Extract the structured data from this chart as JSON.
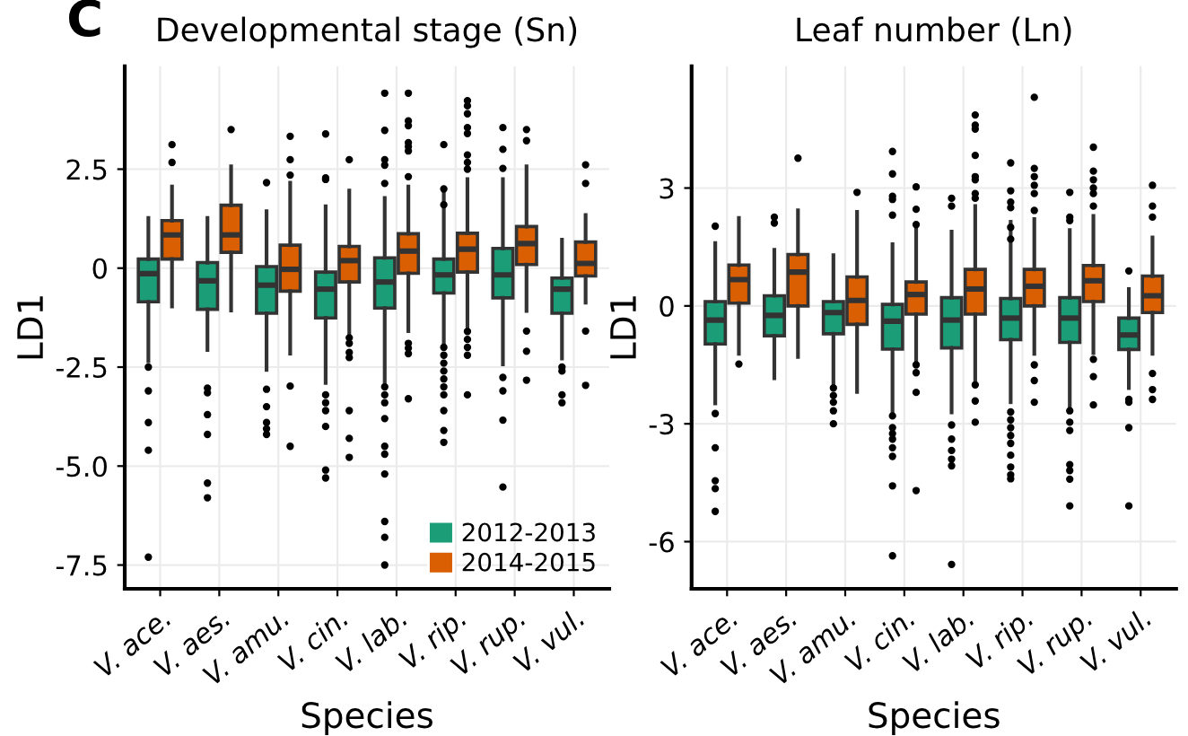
{
  "chart_data": [
    {
      "type": "box",
      "title": "Developmental stage (Sn)",
      "xlabel": "Species",
      "ylabel": "LD1",
      "annotations": [
        "C"
      ],
      "categories": [
        "V. ace.",
        "V. aes.",
        "V. amu.",
        "V. cin.",
        "V. lab.",
        "V. rip.",
        "V. rup.",
        "V. vul."
      ],
      "ylim": [
        -8.1,
        5.1
      ],
      "yticks": [
        -7.5,
        {
          "value": -5,
          "label": "-5.0"
        },
        -2.5,
        0,
        2.5
      ],
      "grid": true,
      "legend": "bottom right",
      "series": [
        {
          "name": "2012-2013",
          "color": "#1b9e77",
          "boxes": [
            {
              "low": -2.35,
              "q1": -0.85,
              "median": -0.14,
              "q3": 0.23,
              "high": 1.27,
              "outliers": [
                -2.5,
                -3.1,
                -3.9,
                -4.6,
                -7.3
              ]
            },
            {
              "low": -2.07,
              "q1": -1.04,
              "median": -0.32,
              "q3": 0.14,
              "high": 1.27,
              "outliers": [
                -3.03,
                -3.15,
                -3.7,
                -4.2,
                -5.43,
                -5.8
              ]
            },
            {
              "low": -2.57,
              "q1": -1.14,
              "median": -0.43,
              "q3": 0.04,
              "high": 1.44,
              "outliers": [
                2.16,
                -3.06,
                -3.5,
                -3.9,
                -4.06,
                -4.2
              ]
            },
            {
              "low": -2.9,
              "q1": -1.26,
              "median": -0.53,
              "q3": -0.1,
              "high": 1.56,
              "outliers": [
                3.39,
                2.28,
                2.24,
                -3.2,
                -3.4,
                -3.6,
                -4.0,
                -5.1,
                -5.3
              ]
            },
            {
              "low": -2.93,
              "q1": -1.01,
              "median": -0.35,
              "q3": 0.26,
              "high": 1.77,
              "outliers": [
                4.42,
                3.48,
                2.74,
                2.6,
                2.14,
                -3.0,
                -3.2,
                -3.4,
                -3.8,
                -4.5,
                -4.7,
                -5.2,
                -6.4,
                -6.8,
                -7.5
              ]
            },
            {
              "low": -1.9,
              "q1": -0.63,
              "median": -0.17,
              "q3": 0.23,
              "high": 1.9,
              "outliers": [
                3.12,
                2.0,
                1.6,
                -2.0,
                -2.2,
                -2.4,
                -2.6,
                -2.8,
                -3.0,
                -3.2,
                -3.6,
                -4.1,
                -4.4
              ]
            },
            {
              "low": -2.43,
              "q1": -0.75,
              "median": -0.17,
              "q3": 0.5,
              "high": 2.25,
              "outliers": [
                3.55,
                3.0,
                2.52,
                -2.76,
                -3.1,
                -3.84,
                -5.53
              ]
            },
            {
              "low": -2.28,
              "q1": -1.14,
              "median": -0.53,
              "q3": -0.25,
              "high": 0.72,
              "outliers": [
                -2.5,
                -2.6,
                -3.2,
                -3.4
              ]
            }
          ]
        },
        {
          "name": "2014-2015",
          "color": "#d95f02",
          "boxes": [
            {
              "low": -0.97,
              "q1": 0.23,
              "median": 0.84,
              "q3": 1.2,
              "high": 2.06,
              "outliers": [
                3.12,
                2.67
              ]
            },
            {
              "low": -1.07,
              "q1": 0.4,
              "median": 0.84,
              "q3": 1.59,
              "high": 2.57,
              "outliers": [
                3.5
              ]
            },
            {
              "low": -2.16,
              "q1": -0.58,
              "median": -0.03,
              "q3": 0.58,
              "high": 2.16,
              "outliers": [
                3.33,
                2.74,
                2.35,
                -2.98,
                -4.5
              ]
            },
            {
              "low": -1.69,
              "q1": -0.35,
              "median": 0.19,
              "q3": 0.55,
              "high": 1.96,
              "outliers": [
                2.74,
                -1.76,
                -1.9,
                -2.13,
                -2.26,
                -3.6,
                -4.3,
                -4.78
              ]
            },
            {
              "low": -1.59,
              "q1": -0.13,
              "median": 0.43,
              "q3": 0.87,
              "high": 2.06,
              "outliers": [
                4.42,
                3.72,
                3.6,
                3.17,
                3.07,
                2.96,
                2.31,
                -1.9,
                -2.02,
                -2.16,
                -3.3
              ]
            },
            {
              "low": -1.54,
              "q1": -0.1,
              "median": 0.48,
              "q3": 0.88,
              "high": 2.25,
              "outliers": [
                4.23,
                4.1,
                3.9,
                3.55,
                3.4,
                2.86,
                2.67,
                2.5,
                -1.6,
                -1.8,
                -2.0,
                -2.2,
                -3.2
              ]
            },
            {
              "low": -1.08,
              "q1": 0.09,
              "median": 0.62,
              "q3": 1.05,
              "high": 2.57,
              "outliers": [
                3.5,
                3.22,
                -1.59,
                -2.1,
                -2.83
              ]
            },
            {
              "low": -0.87,
              "q1": -0.2,
              "median": 0.12,
              "q3": 0.66,
              "high": 1.34,
              "outliers": [
                2.61,
                2.14,
                -1.59,
                -2.96
              ]
            }
          ]
        }
      ]
    },
    {
      "type": "box",
      "title": "Leaf number (Ln)",
      "xlabel": "Species",
      "ylabel": "LD1",
      "categories": [
        "V. ace.",
        "V. aes.",
        "V. amu.",
        "V. cin.",
        "V. lab.",
        "V. rip.",
        "V. rup.",
        "V. vul."
      ],
      "ylim": [
        -7.2,
        6.1
      ],
      "yticks": [
        -6,
        -3,
        0,
        3
      ],
      "grid": true,
      "series": [
        {
          "color": "#1b9e77",
          "boxes": [
            {
              "low": -2.48,
              "q1": -0.97,
              "median": -0.36,
              "q3": 0.11,
              "high": 1.6,
              "outliers": [
                2.03,
                -2.74,
                -3.61,
                -4.45,
                -4.65,
                -5.23
              ]
            },
            {
              "low": -1.84,
              "q1": -0.76,
              "median": -0.24,
              "q3": 0.26,
              "high": 1.43,
              "outliers": [
                2.26,
                2.11
              ]
            },
            {
              "low": -2.0,
              "q1": -0.71,
              "median": -0.17,
              "q3": 0.11,
              "high": 1.29,
              "outliers": [
                -2.09,
                -2.28,
                -2.45,
                -2.67,
                -3.0
              ]
            },
            {
              "low": -2.74,
              "q1": -1.1,
              "median": -0.39,
              "q3": 0.04,
              "high": 1.57,
              "outliers": [
                3.93,
                3.36,
                2.79,
                2.71,
                2.31,
                -2.8,
                -3.1,
                -3.25,
                -3.39,
                -3.61,
                -3.83,
                -4.58,
                -6.36
              ]
            },
            {
              "low": -2.71,
              "q1": -1.07,
              "median": -0.36,
              "q3": 0.21,
              "high": 1.89,
              "outliers": [
                2.74,
                2.54,
                -3.03,
                -3.39,
                -3.68,
                -3.9,
                -4.07,
                -6.58
              ]
            },
            {
              "low": -2.45,
              "q1": -0.86,
              "median": -0.31,
              "q3": 0.19,
              "high": 2.14,
              "outliers": [
                3.64,
                2.93,
                2.64,
                2.5,
                2.0,
                1.7,
                -2.7,
                -2.9,
                -3.1,
                -3.3,
                -3.5,
                -3.8,
                -4.1,
                -4.3,
                -4.4
              ]
            },
            {
              "low": -2.59,
              "q1": -0.93,
              "median": -0.31,
              "q3": 0.21,
              "high": 1.93,
              "outliers": [
                2.89,
                2.26,
                2.17,
                -2.67,
                -2.96,
                -3.17,
                -4.04,
                -4.19,
                -4.41,
                -5.09
              ]
            },
            {
              "low": -2.09,
              "q1": -1.11,
              "median": -0.74,
              "q3": -0.31,
              "high": 0.43,
              "outliers": [
                0.89,
                -2.38,
                -2.45,
                -3.1,
                -5.09
              ]
            }
          ]
        },
        {
          "color": "#d95f02",
          "boxes": [
            {
              "low": -1.22,
              "q1": 0.07,
              "median": 0.67,
              "q3": 1.04,
              "high": 2.24,
              "outliers": [
                -1.48
              ]
            },
            {
              "low": -1.3,
              "q1": 0.0,
              "median": 0.86,
              "q3": 1.31,
              "high": 2.43,
              "outliers": [
                3.76
              ]
            },
            {
              "low": -2.19,
              "q1": -0.47,
              "median": 0.14,
              "q3": 0.74,
              "high": 2.39,
              "outliers": [
                2.89
              ]
            },
            {
              "low": -1.43,
              "q1": -0.21,
              "median": 0.29,
              "q3": 0.61,
              "high": 2.0,
              "outliers": [
                3.03,
                2.46,
                2.07,
                -1.5,
                -1.7,
                -2.2,
                -4.7
              ]
            },
            {
              "low": -1.94,
              "q1": -0.21,
              "median": 0.43,
              "q3": 0.93,
              "high": 2.54,
              "outliers": [
                4.86,
                4.6,
                4.5,
                3.83,
                3.29,
                3.21,
                2.86,
                2.74,
                -2.01,
                -2.42,
                -2.96
              ]
            },
            {
              "low": -1.22,
              "q1": 0.0,
              "median": 0.5,
              "q3": 0.93,
              "high": 2.21,
              "outliers": [
                5.31,
                3.5,
                3.29,
                3.07,
                2.86,
                2.43,
                -1.5,
                -1.9,
                -2.45
              ]
            },
            {
              "low": -1.2,
              "q1": 0.11,
              "median": 0.64,
              "q3": 1.03,
              "high": 2.29,
              "outliers": [
                4.04,
                3.43,
                3.21,
                3.0,
                2.86,
                2.54,
                -1.36,
                -1.8,
                -2.52
              ]
            },
            {
              "low": -1.22,
              "q1": -0.17,
              "median": 0.26,
              "q3": 0.76,
              "high": 1.74,
              "outliers": [
                3.07,
                2.54,
                2.26,
                -1.72,
                -2.13,
                -2.38
              ]
            }
          ]
        }
      ]
    }
  ]
}
